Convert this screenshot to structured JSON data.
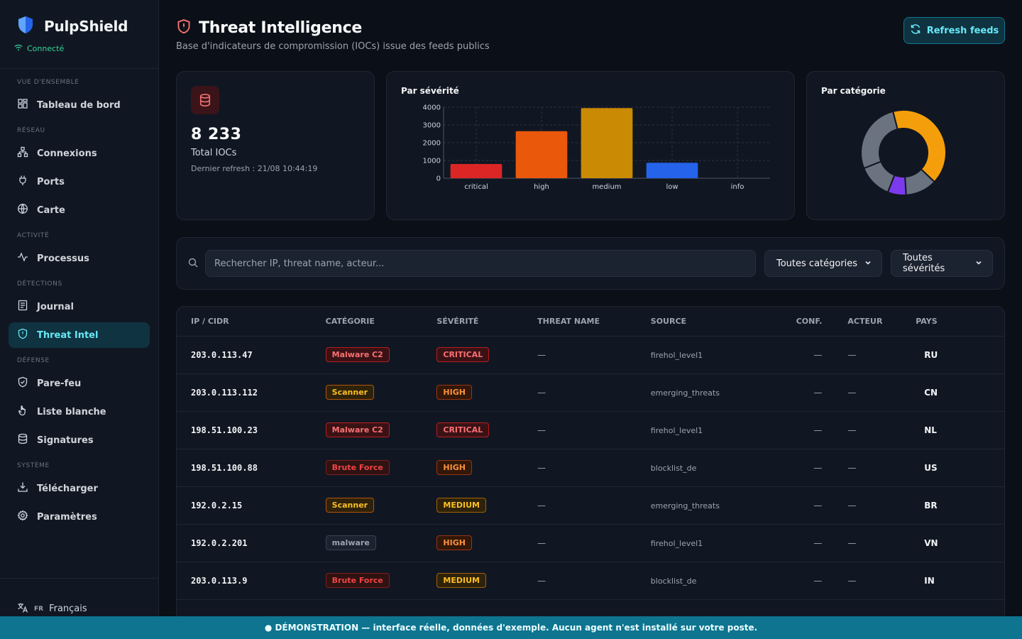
{
  "app": {
    "name": "PulpShield",
    "status": "Connecté"
  },
  "sidebar": {
    "sections": [
      {
        "label": "VUE D'ENSEMBLE",
        "items": [
          {
            "label": "Tableau de bord",
            "icon": "dashboard-icon"
          }
        ]
      },
      {
        "label": "RÉSEAU",
        "items": [
          {
            "label": "Connexions",
            "icon": "network-icon"
          },
          {
            "label": "Ports",
            "icon": "plug-icon"
          },
          {
            "label": "Carte",
            "icon": "globe-icon"
          }
        ]
      },
      {
        "label": "ACTIVITÉ",
        "items": [
          {
            "label": "Processus",
            "icon": "activity-icon"
          }
        ]
      },
      {
        "label": "DÉTECTIONS",
        "items": [
          {
            "label": "Journal",
            "icon": "journal-icon"
          },
          {
            "label": "Threat Intel",
            "icon": "shield-alert-icon",
            "active": true
          }
        ]
      },
      {
        "label": "DÉFENSE",
        "items": [
          {
            "label": "Pare-feu",
            "icon": "shield-check-icon"
          },
          {
            "label": "Liste blanche",
            "icon": "hand-icon"
          },
          {
            "label": "Signatures",
            "icon": "database-icon"
          }
        ]
      },
      {
        "label": "SYSTÈME",
        "items": [
          {
            "label": "Télécharger",
            "icon": "download-icon"
          },
          {
            "label": "Paramètres",
            "icon": "gear-icon"
          }
        ]
      }
    ],
    "language": {
      "code": "FR",
      "label": "Français"
    }
  },
  "header": {
    "title": "Threat Intelligence",
    "subtitle": "Base d'indicateurs de compromission (IOCs) issue des feeds publics",
    "refresh_label": "Refresh feeds"
  },
  "summary": {
    "total": "8 233",
    "total_label": "Total IOCs",
    "last_refresh": "Dernier refresh : 21/08 10:44:19"
  },
  "chart_data": [
    {
      "type": "bar",
      "title": "Par sévérité",
      "categories": [
        "critical",
        "high",
        "medium",
        "low",
        "info"
      ],
      "values": [
        800,
        2650,
        3950,
        870,
        0
      ],
      "colors": [
        "#dc2626",
        "#ea580c",
        "#ca8a04",
        "#2563eb",
        "#6b7280"
      ],
      "ylim": [
        0,
        4000
      ],
      "yticks": [
        0,
        1000,
        2000,
        3000,
        4000
      ],
      "grid": true
    },
    {
      "type": "pie",
      "title": "Par catégorie",
      "donut": true,
      "values": [
        41,
        12,
        7,
        13,
        27
      ],
      "colors": [
        "#f59e0b",
        "#6b7280",
        "#7c3aed",
        "#6b7280",
        "#6b7280"
      ]
    }
  ],
  "filters": {
    "search_placeholder": "Rechercher IP, threat name, acteur...",
    "category": "Toutes catégories",
    "severity": "Toutes sévérités"
  },
  "table": {
    "headers": [
      "IP / CIDR",
      "CATÉGORIE",
      "SÉVÉRITÉ",
      "THREAT NAME",
      "SOURCE",
      "CONF.",
      "ACTEUR",
      "PAYS"
    ],
    "rows": [
      {
        "ip": "203.0.113.47",
        "category": "Malware C2",
        "severity": "CRITICAL",
        "threat": "—",
        "source": "firehol_level1",
        "conf": "—",
        "actor": "—",
        "country": "RU"
      },
      {
        "ip": "203.0.113.112",
        "category": "Scanner",
        "severity": "HIGH",
        "threat": "—",
        "source": "emerging_threats",
        "conf": "—",
        "actor": "—",
        "country": "CN"
      },
      {
        "ip": "198.51.100.23",
        "category": "Malware C2",
        "severity": "CRITICAL",
        "threat": "—",
        "source": "firehol_level1",
        "conf": "—",
        "actor": "—",
        "country": "NL"
      },
      {
        "ip": "198.51.100.88",
        "category": "Brute Force",
        "severity": "HIGH",
        "threat": "—",
        "source": "blocklist_de",
        "conf": "—",
        "actor": "—",
        "country": "US"
      },
      {
        "ip": "192.0.2.15",
        "category": "Scanner",
        "severity": "MEDIUM",
        "threat": "—",
        "source": "emerging_threats",
        "conf": "—",
        "actor": "—",
        "country": "BR"
      },
      {
        "ip": "192.0.2.201",
        "category": "malware",
        "severity": "HIGH",
        "threat": "—",
        "source": "firehol_level1",
        "conf": "—",
        "actor": "—",
        "country": "VN"
      },
      {
        "ip": "203.0.113.9",
        "category": "Brute Force",
        "severity": "MEDIUM",
        "threat": "—",
        "source": "blocklist_de",
        "conf": "—",
        "actor": "—",
        "country": "IN"
      }
    ]
  },
  "banner": "● DÉMONSTRATION — interface réelle, données d'exemple. Aucun agent n'est installé sur votre poste.",
  "colors": {
    "accent": "#67e8f9",
    "critical": "#ef4444",
    "high": "#f97316",
    "medium": "#f59e0b",
    "success": "#34d399"
  }
}
